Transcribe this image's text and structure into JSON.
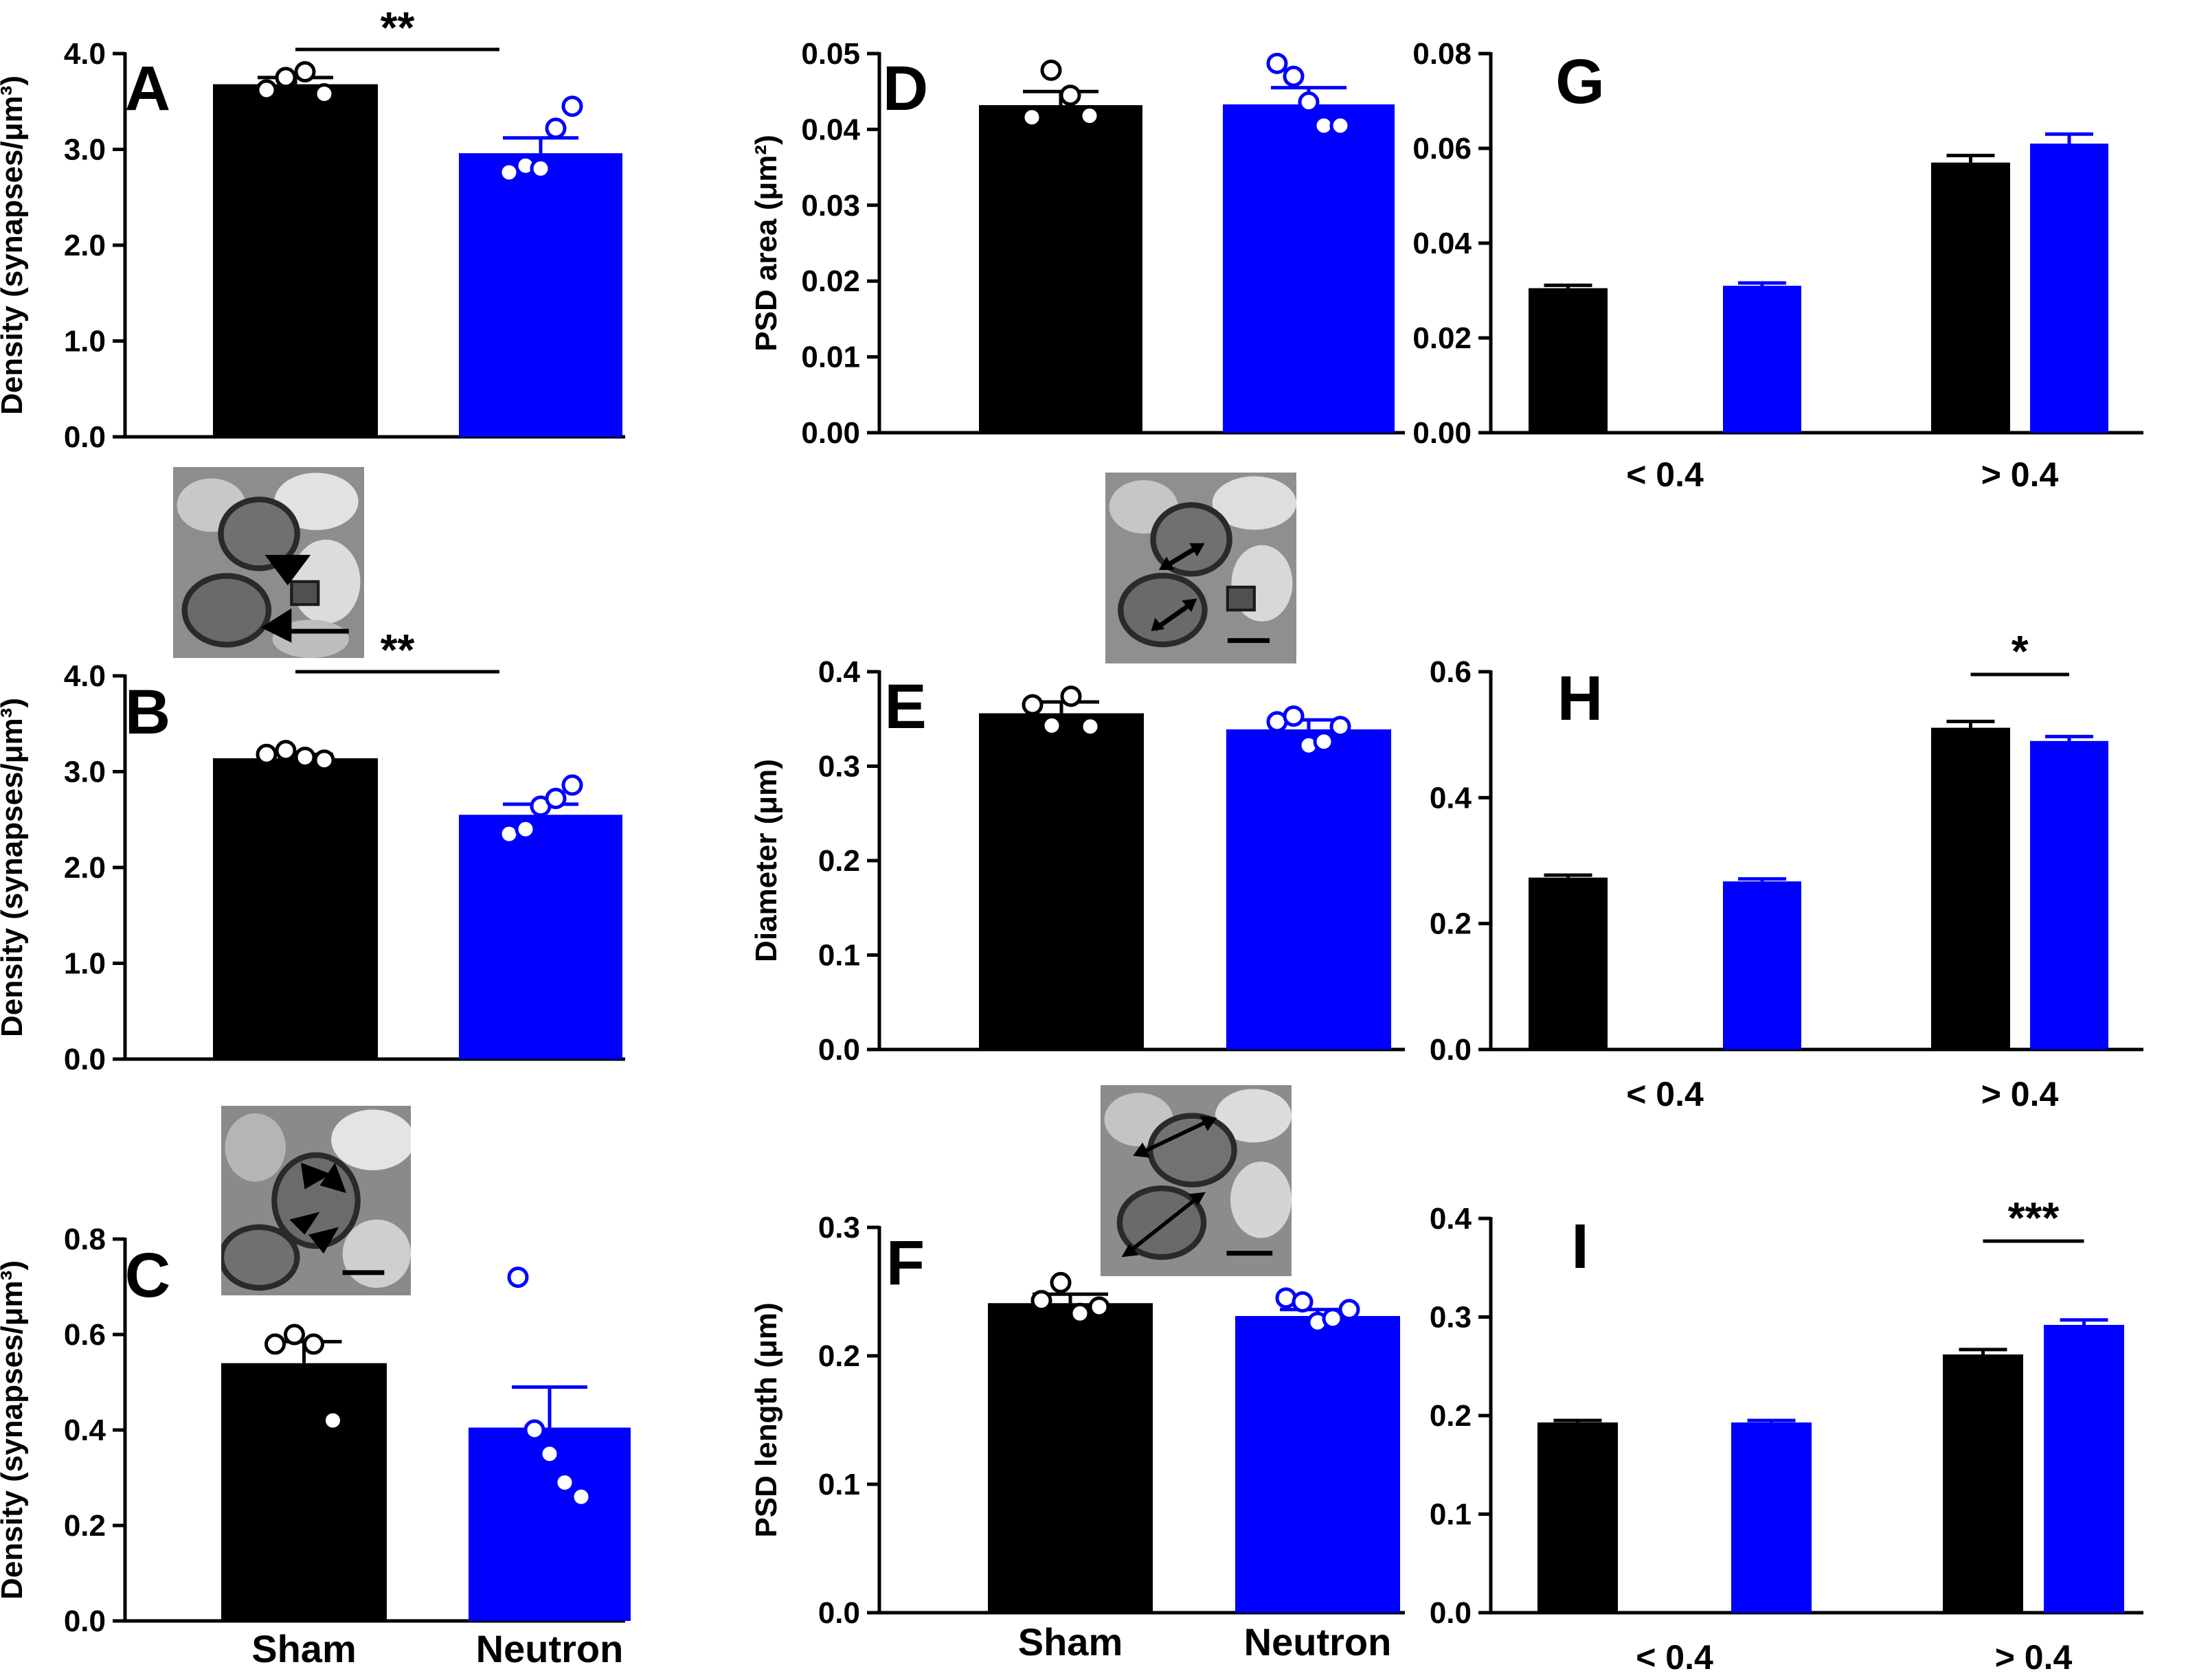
{
  "colors": {
    "sham": "#000000",
    "neutron": "#0000ff",
    "axis": "#000000",
    "background": "#ffffff"
  },
  "group_labels": [
    "Sham",
    "Neutron"
  ],
  "chart_data": [
    {
      "id": "A",
      "type": "bar",
      "panel_label": "A",
      "ylabel": "Density (synapses/μm³)",
      "ylim": [
        0,
        4
      ],
      "ticks": [
        0,
        1,
        2,
        3,
        4
      ],
      "tick_labels": [
        "0.0",
        "1.0",
        "2.0",
        "3.0",
        "4.0"
      ],
      "categories": [
        "Sham",
        "Neutron"
      ],
      "show_category_labels": false,
      "values": [
        3.68,
        2.96
      ],
      "errors": [
        0.07,
        0.16
      ],
      "points": [
        [
          3.62,
          3.75,
          3.81,
          3.58
        ],
        [
          2.76,
          2.83,
          2.8,
          3.22,
          3.45
        ]
      ],
      "significance": [
        {
          "from": 0,
          "to": 1,
          "label": "**"
        }
      ]
    },
    {
      "id": "B",
      "type": "bar",
      "panel_label": "B",
      "ylabel": "Density (synapses/μm³)",
      "ylim": [
        0,
        4
      ],
      "ticks": [
        0,
        1,
        2,
        3,
        4
      ],
      "tick_labels": [
        "0.0",
        "1.0",
        "2.0",
        "3.0",
        "4.0"
      ],
      "categories": [
        "Sham",
        "Neutron"
      ],
      "show_category_labels": false,
      "values": [
        3.14,
        2.55
      ],
      "errors": [
        0.04,
        0.11
      ],
      "points": [
        [
          3.18,
          3.22,
          3.15,
          3.12
        ],
        [
          2.35,
          2.4,
          2.64,
          2.72,
          2.86
        ]
      ],
      "significance": [
        {
          "from": 0,
          "to": 1,
          "label": "**"
        }
      ]
    },
    {
      "id": "C",
      "type": "bar",
      "panel_label": "C",
      "ylabel": "Density (synapses/μm³)",
      "ylim": [
        0,
        0.8
      ],
      "ticks": [
        0,
        0.2,
        0.4,
        0.6,
        0.8
      ],
      "tick_labels": [
        "0.0",
        "0.2",
        "0.4",
        "0.6",
        "0.8"
      ],
      "categories": [
        "Sham",
        "Neutron"
      ],
      "show_category_labels": true,
      "values": [
        0.54,
        0.405
      ],
      "errors": [
        0.045,
        0.085
      ],
      "points": [
        [
          0.58,
          0.6,
          0.58,
          0.42
        ],
        [
          0.72,
          0.4,
          0.35,
          0.29,
          0.26
        ]
      ],
      "significance": []
    },
    {
      "id": "D",
      "type": "bar",
      "panel_label": "D",
      "ylabel": "PSD area (μm²)",
      "ylim": [
        0,
        0.05
      ],
      "ticks": [
        0,
        0.01,
        0.02,
        0.03,
        0.04,
        0.05
      ],
      "tick_labels": [
        "0.00",
        "0.01",
        "0.02",
        "0.03",
        "0.04",
        "0.05"
      ],
      "categories": [
        "Sham",
        "Neutron"
      ],
      "show_category_labels": false,
      "values": [
        0.0432,
        0.0433
      ],
      "errors": [
        0.0018,
        0.0022
      ],
      "points": [
        [
          0.0416,
          0.0478,
          0.0445,
          0.0418
        ],
        [
          0.0487,
          0.047,
          0.0436,
          0.0405,
          0.0405
        ]
      ],
      "significance": []
    },
    {
      "id": "E",
      "type": "bar",
      "panel_label": "E",
      "ylabel": "Diameter (μm)",
      "ylim": [
        0,
        0.4
      ],
      "ticks": [
        0,
        0.1,
        0.2,
        0.3,
        0.4
      ],
      "tick_labels": [
        "0.0",
        "0.1",
        "0.2",
        "0.3",
        "0.4"
      ],
      "categories": [
        "Sham",
        "Neutron"
      ],
      "show_category_labels": false,
      "values": [
        0.356,
        0.339
      ],
      "errors": [
        0.012,
        0.01
      ],
      "points": [
        [
          0.365,
          0.343,
          0.374,
          0.342
        ],
        [
          0.347,
          0.353,
          0.322,
          0.326,
          0.342
        ]
      ],
      "significance": []
    },
    {
      "id": "F",
      "type": "bar",
      "panel_label": "F",
      "ylabel": "PSD length (μm)",
      "ylim": [
        0,
        0.3
      ],
      "ticks": [
        0,
        0.1,
        0.2,
        0.3
      ],
      "tick_labels": [
        "0.0",
        "0.1",
        "0.2",
        "0.3"
      ],
      "categories": [
        "Sham",
        "Neutron"
      ],
      "show_category_labels": true,
      "values": [
        0.241,
        0.231
      ],
      "errors": [
        0.007,
        0.005
      ],
      "points": [
        [
          0.243,
          0.257,
          0.233,
          0.238
        ],
        [
          0.245,
          0.242,
          0.226,
          0.229,
          0.236
        ]
      ],
      "significance": []
    },
    {
      "id": "G",
      "type": "bar",
      "panel_label": "G",
      "ylabel": "",
      "ylim": [
        0,
        0.08
      ],
      "ticks": [
        0,
        0.02,
        0.04,
        0.06,
        0.08
      ],
      "tick_labels": [
        "0.00",
        "0.02",
        "0.04",
        "0.06",
        "0.08"
      ],
      "categories": [
        "< 0.4",
        "> 0.4"
      ],
      "show_category_labels": true,
      "series": [
        {
          "name": "Sham",
          "values": [
            0.0305,
            0.057
          ],
          "errors": [
            0.0006,
            0.0015
          ]
        },
        {
          "name": "Neutron",
          "values": [
            0.031,
            0.061
          ],
          "errors": [
            0.0006,
            0.002
          ]
        }
      ],
      "significance": []
    },
    {
      "id": "H",
      "type": "bar",
      "panel_label": "H",
      "ylabel": "",
      "ylim": [
        0,
        0.6
      ],
      "ticks": [
        0,
        0.2,
        0.4,
        0.6
      ],
      "tick_labels": [
        "0.0",
        "0.2",
        "0.4",
        "0.6"
      ],
      "categories": [
        "< 0.4",
        "> 0.4"
      ],
      "show_category_labels": true,
      "series": [
        {
          "name": "Sham",
          "values": [
            0.273,
            0.511
          ],
          "errors": [
            0.004,
            0.01
          ]
        },
        {
          "name": "Neutron",
          "values": [
            0.267,
            0.49
          ],
          "errors": [
            0.004,
            0.007
          ]
        }
      ],
      "significance": [
        {
          "category": 1,
          "label": "*"
        }
      ]
    },
    {
      "id": "I",
      "type": "bar",
      "panel_label": "I",
      "ylabel": "",
      "ylim": [
        0,
        0.4
      ],
      "ticks": [
        0,
        0.1,
        0.2,
        0.3,
        0.4
      ],
      "tick_labels": [
        "0.0",
        "0.1",
        "0.2",
        "0.3",
        "0.4"
      ],
      "categories": [
        "< 0.4",
        "> 0.4"
      ],
      "show_category_labels": true,
      "series": [
        {
          "name": "Sham",
          "values": [
            0.193,
            0.262
          ],
          "errors": [
            0.002,
            0.005
          ]
        },
        {
          "name": "Neutron",
          "values": [
            0.193,
            0.292
          ],
          "errors": [
            0.002,
            0.005
          ]
        }
      ],
      "significance": [
        {
          "category": 1,
          "label": "***"
        }
      ]
    }
  ]
}
